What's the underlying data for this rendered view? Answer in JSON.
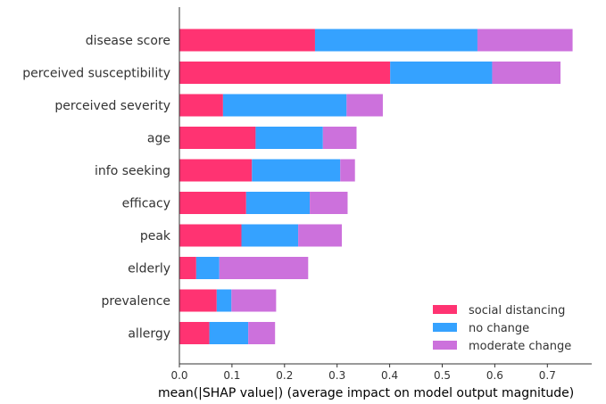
{
  "chart_data": {
    "type": "bar",
    "orientation": "horizontal",
    "stacked": true,
    "title": "",
    "xlabel": "mean(|SHAP value|) (average impact on model output magnitude)",
    "ylabel": "",
    "xlim": [
      0,
      0.79
    ],
    "xticks": [
      "0.0",
      "0.1",
      "0.2",
      "0.3",
      "0.4",
      "0.5",
      "0.6",
      "0.7"
    ],
    "grid": false,
    "legend_position": "lower-right",
    "categories": [
      "disease score",
      "perceived susceptibility",
      "perceived severity",
      "age",
      "info seeking",
      "efficacy",
      "peak",
      "elderly",
      "prevalence",
      "allergy"
    ],
    "series": [
      {
        "name": "social distancing",
        "color": "#ff3372",
        "values": [
          0.258,
          0.401,
          0.083,
          0.145,
          0.138,
          0.127,
          0.118,
          0.032,
          0.071,
          0.057
        ]
      },
      {
        "name": "no change",
        "color": "#35a2ff",
        "values": [
          0.309,
          0.194,
          0.235,
          0.128,
          0.168,
          0.121,
          0.108,
          0.044,
          0.028,
          0.074
        ]
      },
      {
        "name": "moderate change",
        "color": "#cc71dc",
        "values": [
          0.181,
          0.13,
          0.069,
          0.064,
          0.028,
          0.072,
          0.083,
          0.169,
          0.085,
          0.051
        ]
      }
    ]
  }
}
